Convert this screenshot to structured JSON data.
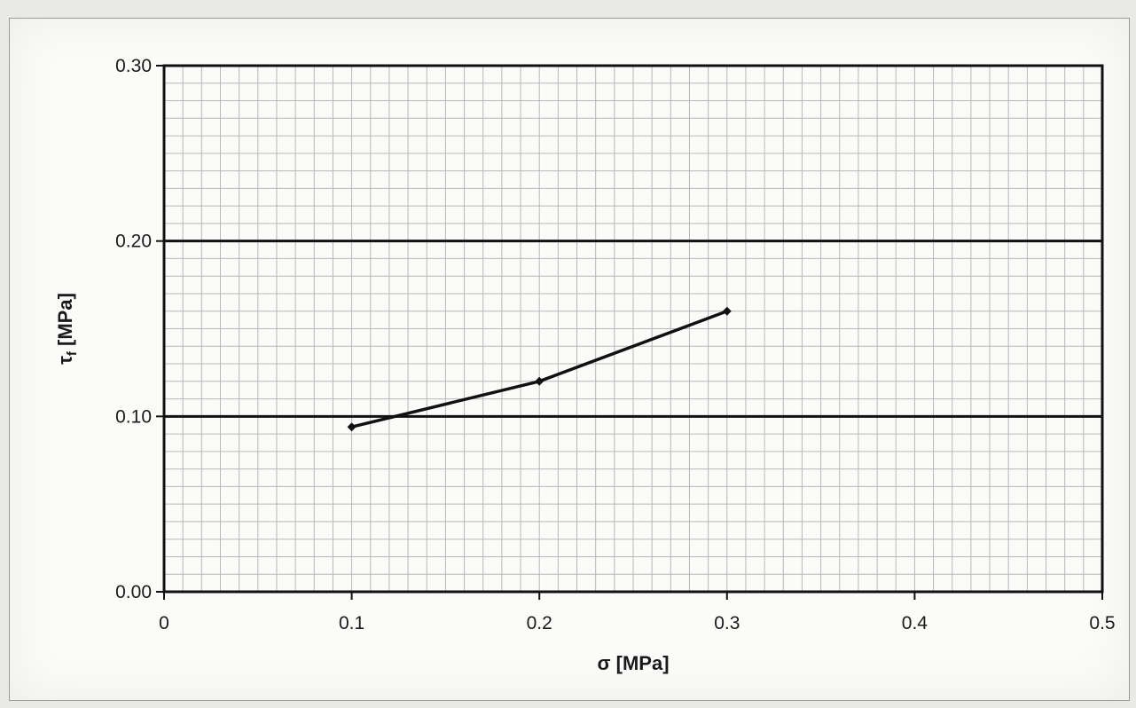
{
  "chart_data": {
    "type": "line",
    "title": "",
    "xlabel": "σ [MPa]",
    "ylabel": "τf [MPa]",
    "ylabel_main": "τ",
    "ylabel_sub": "f",
    "ylabel_rest": " [MPa]",
    "xlim": [
      0,
      0.5
    ],
    "ylim": [
      0,
      0.3
    ],
    "x_ticks": [
      "0",
      "0.1",
      "0.2",
      "0.3",
      "0.4",
      "0.5"
    ],
    "x_tick_values": [
      0,
      0.1,
      0.2,
      0.3,
      0.4,
      0.5
    ],
    "y_ticks": [
      "0.00",
      "0.10",
      "0.20",
      "0.30"
    ],
    "y_tick_values": [
      0,
      0.1,
      0.2,
      0.3
    ],
    "grid": true,
    "series": [
      {
        "x": [
          0.1,
          0.2,
          0.3
        ],
        "y": [
          0.094,
          0.12,
          0.16
        ],
        "color": "#111111",
        "marker": "diamond"
      }
    ]
  }
}
